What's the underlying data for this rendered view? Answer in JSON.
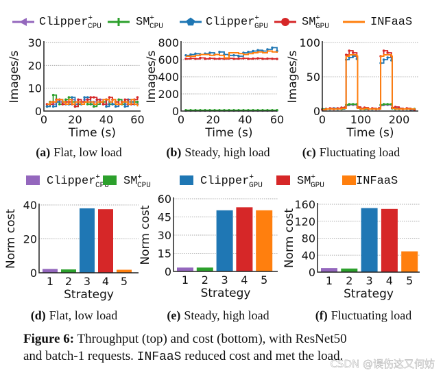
{
  "colors": {
    "clipper_cpu": "#9467bd",
    "sm_cpu": "#2ca02c",
    "clipper_gpu": "#1f77b4",
    "sm_gpu": "#d62728",
    "infaas": "#ff7f0e"
  },
  "legend": [
    {
      "name": "Clipper",
      "sup": "+",
      "sub": "CPU",
      "color": "#9467bd",
      "marker": "triangle-left"
    },
    {
      "name": "SM",
      "sup": "+",
      "sub": "CPU",
      "color": "#2ca02c",
      "marker": "plus"
    },
    {
      "name": "Clipper",
      "sup": "+",
      "sub": "GPU",
      "color": "#1f77b4",
      "marker": "pentagon"
    },
    {
      "name": "SM",
      "sup": "+",
      "sub": "GPU",
      "color": "#d62728",
      "marker": "circle"
    },
    {
      "name": "INFaaS",
      "sup": "",
      "sub": "",
      "color": "#ff7f0e",
      "marker": "none"
    }
  ],
  "chart_data": [
    {
      "type": "line",
      "label": "(a)",
      "title": "Flat, low load",
      "xlabel": "Time (s)",
      "ylabel": "Images/s",
      "xlim": [
        0,
        62
      ],
      "ylim": [
        0,
        30
      ],
      "xticks": [
        0,
        20,
        40,
        60
      ],
      "yticks": [
        0,
        10,
        20,
        30
      ],
      "grid": true,
      "x": [
        2,
        4,
        6,
        8,
        10,
        12,
        14,
        16,
        18,
        20,
        22,
        24,
        26,
        28,
        30,
        32,
        34,
        36,
        38,
        40,
        42,
        44,
        46,
        48,
        50,
        52,
        54,
        56,
        58,
        60
      ],
      "series": [
        {
          "values": [
            3,
            4,
            3,
            5,
            4,
            3,
            4,
            3,
            5,
            4,
            3,
            4,
            5,
            4,
            3,
            4,
            3,
            5,
            4,
            3,
            4,
            3,
            4,
            5,
            4,
            3,
            4,
            3,
            4,
            3
          ]
        },
        {
          "values": [
            2,
            4,
            7,
            4,
            3,
            4,
            5,
            6,
            4,
            2,
            3,
            3,
            4,
            3,
            3,
            2,
            3,
            4,
            4,
            5,
            3,
            3,
            4,
            5,
            3,
            4,
            3,
            4,
            4,
            4
          ]
        },
        {
          "values": [
            2,
            3,
            2,
            4,
            5,
            4,
            3,
            3,
            6,
            3,
            4,
            3,
            6,
            6,
            4,
            3,
            5,
            4,
            3,
            2,
            4,
            3,
            2,
            3,
            4,
            2,
            5,
            4,
            3,
            3
          ]
        },
        {
          "values": [
            3,
            3,
            4,
            5,
            5,
            3,
            4,
            4,
            3,
            2,
            5,
            4,
            4,
            5,
            6,
            6,
            5,
            4,
            3,
            5,
            6,
            5,
            4,
            3,
            4,
            5,
            3,
            3,
            5,
            6
          ]
        },
        {
          "values": [
            3,
            4,
            4,
            5,
            5,
            4,
            3,
            5,
            3,
            4,
            4,
            3,
            4,
            4,
            4,
            3,
            4,
            4,
            5,
            5,
            4,
            5,
            3,
            3,
            4,
            4,
            3,
            5,
            3,
            2
          ]
        }
      ]
    },
    {
      "type": "line",
      "label": "(b)",
      "title": "Steady, high load",
      "xlabel": "Time (s)",
      "ylabel": "Images/s",
      "xlim": [
        0,
        60
      ],
      "ylim": [
        0,
        800
      ],
      "xticks": [
        0,
        20,
        40,
        60
      ],
      "yticks": [
        0,
        200,
        400,
        600,
        800
      ],
      "grid": true,
      "x": [
        3,
        6,
        9,
        12,
        15,
        18,
        21,
        24,
        27,
        30,
        33,
        36,
        39,
        42,
        45,
        48,
        51,
        54,
        57,
        60
      ],
      "series": [
        {
          "values": [
            5,
            5,
            5,
            5,
            5,
            5,
            5,
            5,
            5,
            5,
            5,
            5,
            5,
            5,
            5,
            5,
            5,
            5,
            5,
            5
          ]
        },
        {
          "values": [
            10,
            10,
            10,
            10,
            10,
            10,
            10,
            10,
            10,
            10,
            10,
            10,
            10,
            10,
            10,
            10,
            10,
            10,
            10,
            10
          ]
        },
        {
          "values": [
            650,
            660,
            670,
            660,
            670,
            680,
            660,
            690,
            660,
            650,
            650,
            640,
            680,
            690,
            700,
            710,
            700,
            720,
            740,
            700
          ]
        },
        {
          "values": [
            610,
            615,
            610,
            620,
            610,
            615,
            610,
            612,
            610,
            615,
            610,
            612,
            615,
            610,
            612,
            615,
            610,
            612,
            610,
            608
          ]
        },
        {
          "values": [
            640,
            640,
            650,
            660,
            660,
            650,
            660,
            650,
            620,
            680,
            680,
            670,
            660,
            670,
            680,
            690,
            680,
            700,
            690,
            680
          ]
        }
      ]
    },
    {
      "type": "line",
      "label": "(c)",
      "title": "Fluctuating load",
      "xlabel": "Time (s)",
      "ylabel": "Images/s",
      "xlim": [
        0,
        250
      ],
      "ylim": [
        0,
        100
      ],
      "xticks": [
        0,
        100,
        200
      ],
      "yticks": [
        0,
        50,
        100
      ],
      "grid": true,
      "x": [
        0,
        10,
        20,
        30,
        40,
        50,
        58,
        62,
        70,
        80,
        90,
        92,
        100,
        110,
        120,
        130,
        140,
        148,
        152,
        160,
        170,
        180,
        182,
        190,
        200,
        210,
        220,
        230,
        240
      ],
      "series": [
        {
          "values": [
            2,
            3,
            3,
            3,
            3,
            3,
            4,
            8,
            9,
            9,
            9,
            5,
            3,
            3,
            3,
            3,
            3,
            3,
            8,
            9,
            9,
            9,
            4,
            3,
            3,
            3,
            3,
            3,
            2
          ]
        },
        {
          "values": [
            3,
            3,
            3,
            3,
            3,
            3,
            5,
            9,
            10,
            10,
            10,
            5,
            3,
            3,
            3,
            3,
            3,
            4,
            9,
            10,
            10,
            10,
            4,
            3,
            3,
            3,
            3,
            3,
            3
          ]
        },
        {
          "values": [
            2,
            3,
            3,
            4,
            3,
            4,
            4,
            75,
            78,
            80,
            76,
            5,
            4,
            4,
            3,
            3,
            3,
            4,
            70,
            75,
            78,
            74,
            5,
            4,
            4,
            3,
            3,
            2,
            2
          ]
        },
        {
          "values": [
            2,
            3,
            4,
            3,
            4,
            5,
            5,
            82,
            88,
            85,
            80,
            6,
            4,
            5,
            3,
            4,
            3,
            4,
            80,
            88,
            85,
            80,
            5,
            6,
            4,
            3,
            4,
            3,
            2
          ]
        },
        {
          "values": [
            2,
            3,
            3,
            3,
            3,
            4,
            4,
            80,
            82,
            82,
            80,
            4,
            3,
            4,
            3,
            3,
            3,
            3,
            80,
            82,
            82,
            80,
            4,
            3,
            3,
            3,
            3,
            3,
            2
          ]
        }
      ]
    },
    {
      "type": "bar",
      "label": "(d)",
      "title": "Flat, low load",
      "xlabel": "Strategy",
      "ylabel": "Norm cost",
      "categories": [
        "1",
        "2",
        "3",
        "4",
        "5"
      ],
      "values": [
        2.3,
        2.0,
        38,
        37.5,
        1.8
      ],
      "ylim": [
        0,
        40
      ],
      "yticks": [
        0,
        20,
        40
      ],
      "grid": true
    },
    {
      "type": "bar",
      "label": "(e)",
      "title": "Steady, high load",
      "xlabel": "Strategy",
      "ylabel": "Norm cost",
      "categories": [
        "1",
        "2",
        "3",
        "4",
        "5"
      ],
      "values": [
        3.2,
        3.2,
        50.5,
        53,
        50.5
      ],
      "ylim": [
        0,
        60
      ],
      "yticks": [
        0,
        15,
        30,
        45,
        60
      ],
      "grid": true
    },
    {
      "type": "bar",
      "label": "(f)",
      "title": "Fluctuating load",
      "xlabel": "Strategy",
      "ylabel": "Norm cost",
      "categories": [
        "1",
        "2",
        "3",
        "4",
        "5"
      ],
      "values": [
        9.5,
        8.5,
        151,
        149,
        49
      ],
      "ylim": [
        0,
        160
      ],
      "yticks": [
        0,
        40,
        80,
        120,
        160
      ],
      "grid": true
    }
  ],
  "caption": {
    "label": "Figure 6:",
    "line1": " Throughput (top) and cost (bottom), with ResNet50",
    "line2_a": "and batch-1 requests. ",
    "line2_mono": "INFaaS",
    "line2_b": " reduced cost and met the load."
  },
  "watermark": "CSDN @误伤这又何妨"
}
